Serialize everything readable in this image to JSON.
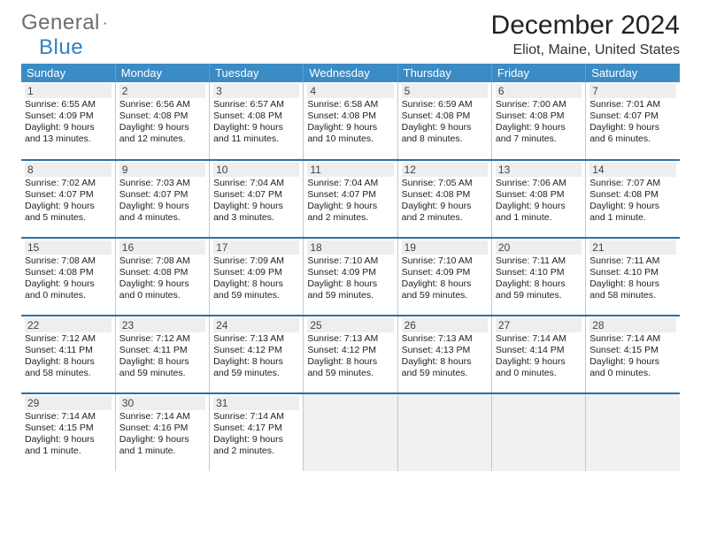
{
  "logo": {
    "text_a": "General",
    "text_b": "Blue"
  },
  "title": "December 2024",
  "location": "Eliot, Maine, United States",
  "dow": [
    "Sunday",
    "Monday",
    "Tuesday",
    "Wednesday",
    "Thursday",
    "Friday",
    "Saturday"
  ],
  "colors": {
    "header_blue": "#3b8bc5",
    "row_sep": "#2e6fa3",
    "blank_bg": "#f1f1f1",
    "daynum_bg": "#eeeeee"
  },
  "layout": {
    "weeks": 5,
    "cols": 7,
    "first_weekday": 0
  },
  "fonts": {
    "title_pt": 30,
    "location_pt": 16,
    "dow_pt": 13,
    "daynum_pt": 12,
    "body_pt": 10.5
  },
  "days": [
    {
      "n": 1,
      "sr": "6:55 AM",
      "ss": "4:09 PM",
      "dl": "9 hours and 13 minutes."
    },
    {
      "n": 2,
      "sr": "6:56 AM",
      "ss": "4:08 PM",
      "dl": "9 hours and 12 minutes."
    },
    {
      "n": 3,
      "sr": "6:57 AM",
      "ss": "4:08 PM",
      "dl": "9 hours and 11 minutes."
    },
    {
      "n": 4,
      "sr": "6:58 AM",
      "ss": "4:08 PM",
      "dl": "9 hours and 10 minutes."
    },
    {
      "n": 5,
      "sr": "6:59 AM",
      "ss": "4:08 PM",
      "dl": "9 hours and 8 minutes."
    },
    {
      "n": 6,
      "sr": "7:00 AM",
      "ss": "4:08 PM",
      "dl": "9 hours and 7 minutes."
    },
    {
      "n": 7,
      "sr": "7:01 AM",
      "ss": "4:07 PM",
      "dl": "9 hours and 6 minutes."
    },
    {
      "n": 8,
      "sr": "7:02 AM",
      "ss": "4:07 PM",
      "dl": "9 hours and 5 minutes."
    },
    {
      "n": 9,
      "sr": "7:03 AM",
      "ss": "4:07 PM",
      "dl": "9 hours and 4 minutes."
    },
    {
      "n": 10,
      "sr": "7:04 AM",
      "ss": "4:07 PM",
      "dl": "9 hours and 3 minutes."
    },
    {
      "n": 11,
      "sr": "7:04 AM",
      "ss": "4:07 PM",
      "dl": "9 hours and 2 minutes."
    },
    {
      "n": 12,
      "sr": "7:05 AM",
      "ss": "4:08 PM",
      "dl": "9 hours and 2 minutes."
    },
    {
      "n": 13,
      "sr": "7:06 AM",
      "ss": "4:08 PM",
      "dl": "9 hours and 1 minute."
    },
    {
      "n": 14,
      "sr": "7:07 AM",
      "ss": "4:08 PM",
      "dl": "9 hours and 1 minute."
    },
    {
      "n": 15,
      "sr": "7:08 AM",
      "ss": "4:08 PM",
      "dl": "9 hours and 0 minutes."
    },
    {
      "n": 16,
      "sr": "7:08 AM",
      "ss": "4:08 PM",
      "dl": "9 hours and 0 minutes."
    },
    {
      "n": 17,
      "sr": "7:09 AM",
      "ss": "4:09 PM",
      "dl": "8 hours and 59 minutes."
    },
    {
      "n": 18,
      "sr": "7:10 AM",
      "ss": "4:09 PM",
      "dl": "8 hours and 59 minutes."
    },
    {
      "n": 19,
      "sr": "7:10 AM",
      "ss": "4:09 PM",
      "dl": "8 hours and 59 minutes."
    },
    {
      "n": 20,
      "sr": "7:11 AM",
      "ss": "4:10 PM",
      "dl": "8 hours and 59 minutes."
    },
    {
      "n": 21,
      "sr": "7:11 AM",
      "ss": "4:10 PM",
      "dl": "8 hours and 58 minutes."
    },
    {
      "n": 22,
      "sr": "7:12 AM",
      "ss": "4:11 PM",
      "dl": "8 hours and 58 minutes."
    },
    {
      "n": 23,
      "sr": "7:12 AM",
      "ss": "4:11 PM",
      "dl": "8 hours and 59 minutes."
    },
    {
      "n": 24,
      "sr": "7:13 AM",
      "ss": "4:12 PM",
      "dl": "8 hours and 59 minutes."
    },
    {
      "n": 25,
      "sr": "7:13 AM",
      "ss": "4:12 PM",
      "dl": "8 hours and 59 minutes."
    },
    {
      "n": 26,
      "sr": "7:13 AM",
      "ss": "4:13 PM",
      "dl": "8 hours and 59 minutes."
    },
    {
      "n": 27,
      "sr": "7:14 AM",
      "ss": "4:14 PM",
      "dl": "9 hours and 0 minutes."
    },
    {
      "n": 28,
      "sr": "7:14 AM",
      "ss": "4:15 PM",
      "dl": "9 hours and 0 minutes."
    },
    {
      "n": 29,
      "sr": "7:14 AM",
      "ss": "4:15 PM",
      "dl": "9 hours and 1 minute."
    },
    {
      "n": 30,
      "sr": "7:14 AM",
      "ss": "4:16 PM",
      "dl": "9 hours and 1 minute."
    },
    {
      "n": 31,
      "sr": "7:14 AM",
      "ss": "4:17 PM",
      "dl": "9 hours and 2 minutes."
    }
  ],
  "labels": {
    "sunrise": "Sunrise:",
    "sunset": "Sunset:",
    "daylight": "Daylight:"
  }
}
